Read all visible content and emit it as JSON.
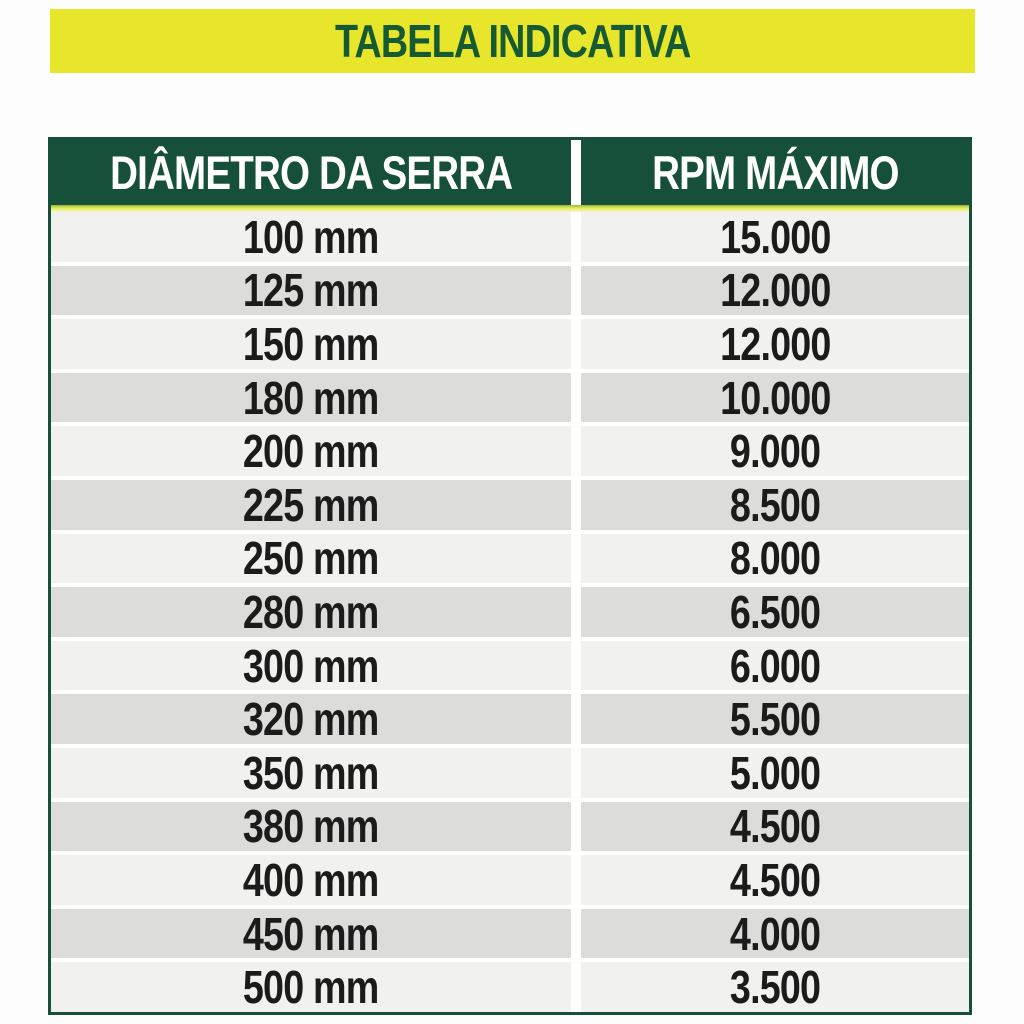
{
  "title": "TABELA INDICATIVA",
  "table": {
    "columns": [
      "DIÂMETRO DA SERRA",
      "RPM MÁXIMO"
    ],
    "rows": [
      {
        "diameter": "100 mm",
        "rpm": "15.000"
      },
      {
        "diameter": "125 mm",
        "rpm": "12.000"
      },
      {
        "diameter": "150 mm",
        "rpm": "12.000"
      },
      {
        "diameter": "180 mm",
        "rpm": "10.000"
      },
      {
        "diameter": "200 mm",
        "rpm": "9.000"
      },
      {
        "diameter": "225 mm",
        "rpm": "8.500"
      },
      {
        "diameter": "250 mm",
        "rpm": "8.000"
      },
      {
        "diameter": "280 mm",
        "rpm": "6.500"
      },
      {
        "diameter": "300 mm",
        "rpm": "6.000"
      },
      {
        "diameter": "320 mm",
        "rpm": "5.500"
      },
      {
        "diameter": "350 mm",
        "rpm": "5.000"
      },
      {
        "diameter": "380 mm",
        "rpm": "4.500"
      },
      {
        "diameter": "400 mm",
        "rpm": "4.500"
      },
      {
        "diameter": "450 mm",
        "rpm": "4.000"
      },
      {
        "diameter": "500 mm",
        "rpm": "3.500"
      }
    ]
  },
  "colors": {
    "banner_bg": "#e8e62b",
    "title_text": "#155a33",
    "header_bg": "#17503a",
    "header_text": "#ffffff",
    "accent_line": "#e3ec5a",
    "row_light": "#f1f1f0",
    "row_dark": "#dcdcdb",
    "body_text": "#1b1b1b",
    "table_border": "#17503a"
  }
}
